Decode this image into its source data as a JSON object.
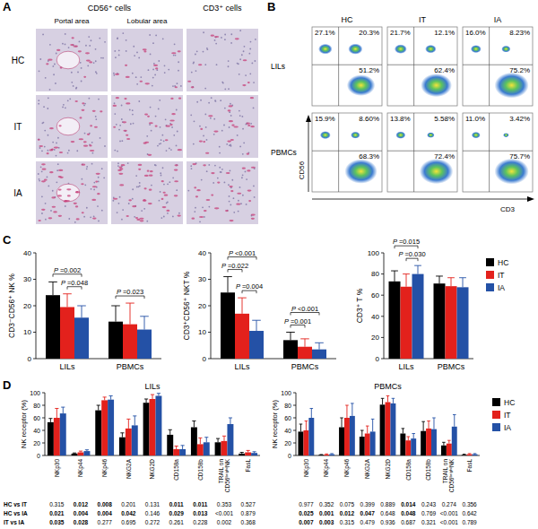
{
  "panel_labels": [
    "A",
    "B",
    "C",
    "D"
  ],
  "panel_a": {
    "column_groups": [
      {
        "label": "CD56⁺ cells",
        "columns": [
          "Portal area",
          "Lobular area"
        ]
      },
      {
        "label": "CD3⁺ cells",
        "columns": []
      }
    ],
    "rows": [
      "HC",
      "IT",
      "IA"
    ]
  },
  "panel_b": {
    "columns": [
      "HC",
      "IT",
      "IA"
    ],
    "rows": [
      "LILs",
      "PBMCs"
    ],
    "x_label": "CD3",
    "y_label": "CD56",
    "quadrants": [
      [
        {
          "values": [
            27.1,
            20.3,
            51.2
          ],
          "value_labels": [
            "27.1%",
            "20.3%",
            "51.2%"
          ]
        },
        {
          "values": [
            21.7,
            12.1,
            62.4
          ],
          "value_labels": [
            "21.7%",
            "12.1%",
            "62.4%"
          ]
        },
        {
          "values": [
            16.0,
            8.23,
            75.2
          ],
          "value_labels": [
            "16.0%",
            "8.23%",
            "75.2%"
          ]
        }
      ],
      [
        {
          "values": [
            15.9,
            8.6,
            68.3
          ],
          "value_labels": [
            "15.9%",
            "8.60%",
            "68.3%"
          ]
        },
        {
          "values": [
            13.8,
            5.58,
            72.4
          ],
          "value_labels": [
            "13.8%",
            "5.58%",
            "72.4%"
          ]
        },
        {
          "values": [
            11.0,
            3.42,
            75.7
          ],
          "value_labels": [
            "11.0%",
            "3.42%",
            "75.7%"
          ]
        }
      ]
    ]
  },
  "chart_data": [
    {
      "type": "bar",
      "ylabel": "CD3⁻CD56⁺ NK %",
      "categories": [
        "LILs",
        "PBMCs"
      ],
      "series": [
        {
          "name": "HC",
          "color": "#000000",
          "values": [
            24,
            14
          ],
          "errors": [
            5,
            6
          ]
        },
        {
          "name": "IT",
          "color": "#e3211c",
          "values": [
            19.5,
            13
          ],
          "errors": [
            5,
            8
          ]
        },
        {
          "name": "IA",
          "color": "#2451a6",
          "values": [
            15.5,
            11
          ],
          "errors": [
            4.5,
            5
          ]
        }
      ],
      "ylim": [
        0,
        40
      ],
      "yticks": [
        0,
        10,
        20,
        30,
        40
      ],
      "annotations": [
        {
          "text": "P =0.048",
          "category": 0,
          "series": [
            1,
            2
          ]
        },
        {
          "text": "P =0.002",
          "category": 0,
          "series": [
            0,
            2
          ]
        },
        {
          "text": "P =0.023",
          "category": 1,
          "series": [
            0,
            2
          ]
        }
      ]
    },
    {
      "type": "bar",
      "ylabel": "CD3⁺CD56⁺ NKT %",
      "categories": [
        "LILs",
        "PBMCs"
      ],
      "series": [
        {
          "name": "HC",
          "color": "#000000",
          "values": [
            25,
            7
          ],
          "errors": [
            6,
            3
          ]
        },
        {
          "name": "IT",
          "color": "#e3211c",
          "values": [
            17,
            4.5
          ],
          "errors": [
            6,
            3
          ]
        },
        {
          "name": "IA",
          "color": "#2451a6",
          "values": [
            10.5,
            3.5
          ],
          "errors": [
            4,
            2.5
          ]
        }
      ],
      "ylim": [
        0,
        40
      ],
      "yticks": [
        0,
        10,
        20,
        30,
        40
      ],
      "annotations": [
        {
          "text": "P =0.004",
          "category": 0,
          "series": [
            1,
            2
          ]
        },
        {
          "text": "P =0.022",
          "category": 0,
          "series": [
            0,
            1
          ]
        },
        {
          "text": "P <0.001",
          "category": 0,
          "series": [
            0,
            2
          ]
        },
        {
          "text": "P =0.001",
          "category": 1,
          "series": [
            0,
            1
          ]
        },
        {
          "text": "P <0.001",
          "category": 1,
          "series": [
            0,
            2
          ]
        }
      ]
    },
    {
      "type": "bar",
      "ylabel": "CD3⁺ T %",
      "categories": [
        "LILs",
        "PBMCs"
      ],
      "series": [
        {
          "name": "HC",
          "color": "#000000",
          "values": [
            73,
            71
          ],
          "errors": [
            10,
            7
          ]
        },
        {
          "name": "IT",
          "color": "#e3211c",
          "values": [
            68,
            68.5
          ],
          "errors": [
            12,
            8
          ]
        },
        {
          "name": "IA",
          "color": "#2451a6",
          "values": [
            80,
            67.5
          ],
          "errors": [
            8,
            9
          ]
        }
      ],
      "ylim": [
        0,
        100
      ],
      "yticks": [
        0,
        20,
        40,
        60,
        80,
        100
      ],
      "annotations": [
        {
          "text": "P =0.030",
          "category": 0,
          "series": [
            1,
            2
          ]
        },
        {
          "text": "P =0.015",
          "category": 0,
          "series": [
            0,
            2
          ]
        }
      ],
      "legend": "right"
    },
    {
      "type": "bar",
      "title": "LILs",
      "ylabel": "NK receptor (%)",
      "categories": [
        "NKp30",
        "NKp44",
        "NKp46",
        "NKG2A",
        "NKG2D",
        "CD158a",
        "CD158b",
        "TRAIL on CD56ᵇʳⁱᵍʰᵗNK",
        "FasL"
      ],
      "series": [
        {
          "name": "HC",
          "color": "#000000",
          "values": [
            53,
            3,
            72,
            29,
            84,
            33,
            45,
            21,
            3
          ],
          "errors": [
            6,
            1,
            8,
            7,
            6,
            8,
            10,
            6,
            2
          ]
        },
        {
          "name": "IT",
          "color": "#e3211c",
          "values": [
            60,
            5,
            88,
            43,
            90,
            10,
            18,
            23,
            5
          ],
          "errors": [
            15,
            2,
            5,
            15,
            7,
            5,
            10,
            8,
            3
          ]
        },
        {
          "name": "IA",
          "color": "#2451a6",
          "values": [
            67,
            7,
            89,
            48,
            95,
            10,
            21,
            50,
            4
          ],
          "errors": [
            10,
            2,
            6,
            15,
            4,
            6,
            8,
            10,
            2
          ]
        }
      ],
      "ylim": [
        0,
        100
      ],
      "yticks": [
        0,
        20,
        40,
        60,
        80,
        100
      ],
      "p_value_rows": [
        "HC vs IT",
        "HC vs IA",
        "IT vs IA"
      ],
      "p_values": {
        "rows": [
          [
            "0.315",
            "0.012",
            "0.008",
            "0.201",
            "0.131",
            "0.011",
            "0.011",
            "0.353",
            "0.527"
          ],
          [
            "0.021",
            "0.004",
            "0.004",
            "0.042",
            "0.146",
            "0.029",
            "0.013",
            "<0.001",
            "0.879"
          ],
          [
            "0.035",
            "0.028",
            "0.277",
            "0.695",
            "0.272",
            "0.261",
            "0.228",
            "0.002",
            "0.368"
          ]
        ],
        "bold": [
          [
            false,
            true,
            true,
            false,
            false,
            true,
            true,
            false,
            false
          ],
          [
            true,
            true,
            true,
            true,
            false,
            true,
            true,
            false,
            false
          ],
          [
            true,
            true,
            false,
            false,
            false,
            false,
            false,
            false,
            false
          ]
        ]
      }
    },
    {
      "type": "bar",
      "title": "PBMCs",
      "ylabel": "NK receptor (%)",
      "categories": [
        "NKp30",
        "NKp44",
        "NKp46",
        "NKG2A",
        "NKG2D",
        "CD158a",
        "CD158b",
        "TRAIL on CD56ᵇʳⁱᵍʰᵗNK",
        "FasL"
      ],
      "series": [
        {
          "name": "HC",
          "color": "#000000",
          "values": [
            38,
            1,
            45,
            30,
            81,
            35,
            39,
            16,
            1
          ],
          "errors": [
            12,
            0.5,
            15,
            10,
            10,
            8,
            15,
            5,
            1
          ]
        },
        {
          "name": "IT",
          "color": "#e3211c",
          "values": [
            40,
            1.5,
            60,
            35,
            85,
            24,
            43,
            19,
            2
          ],
          "errors": [
            15,
            1,
            20,
            12,
            10,
            6,
            12,
            5,
            1
          ]
        },
        {
          "name": "IA",
          "color": "#2451a6",
          "values": [
            60,
            2,
            63,
            38,
            83,
            27,
            42,
            46,
            2
          ],
          "errors": [
            15,
            1,
            20,
            20,
            8,
            8,
            18,
            19,
            1
          ]
        }
      ],
      "ylim": [
        0,
        100
      ],
      "yticks": [
        0,
        20,
        40,
        60,
        80,
        100
      ],
      "legend": "right",
      "p_values": {
        "rows": [
          [
            "0.977",
            "0.352",
            "0.075",
            "0.399",
            "0.889",
            "0.014",
            "0.243",
            "0.274",
            "0.356"
          ],
          [
            "0.025",
            "0.001",
            "0.012",
            "0.047",
            "0.648",
            "0.048",
            "0.769",
            "<0.001",
            "0.642"
          ],
          [
            "0.007",
            "0.003",
            "0.315",
            "0.479",
            "0.936",
            "0.687",
            "0.321",
            "<0.001",
            "0.789"
          ]
        ],
        "bold": [
          [
            false,
            false,
            false,
            false,
            false,
            true,
            false,
            false,
            false
          ],
          [
            true,
            true,
            true,
            true,
            false,
            true,
            false,
            false,
            false
          ],
          [
            true,
            true,
            false,
            false,
            false,
            false,
            false,
            false,
            false
          ]
        ]
      }
    }
  ]
}
